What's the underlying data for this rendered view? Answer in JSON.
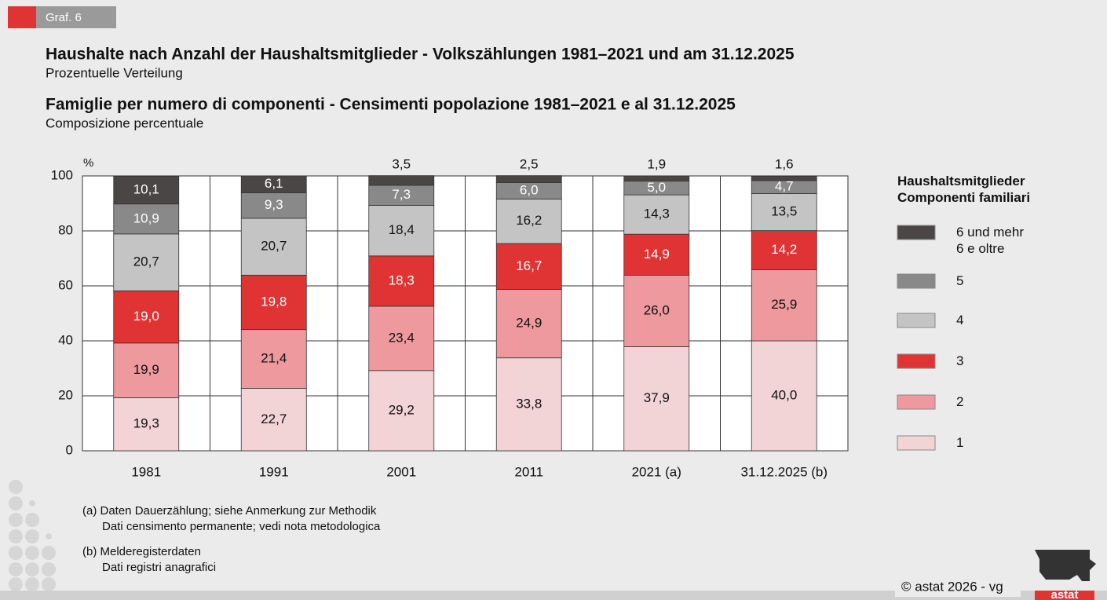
{
  "tag": "Graf. 6",
  "footnotes": [
    [
      "(a) Daten Dauerzählung; siehe Anmerkung zur Methodik",
      "Dati censimento permanente; vedi nota metodologica"
    ],
    [
      "(b) Melderegisterdaten",
      "Dati registri anagrafici"
    ]
  ],
  "copyright": "© astat 2026 - vg",
  "logo": "astat",
  "chart_data": {
    "type": "stacked_bar",
    "title": "Haushalte nach Anzahl der Haushaltsmitglieder - Volkszählungen 1981–2021 und am 31.12.2025",
    "subtitle": "Prozentuelle Verteilung",
    "title_it": "Famiglie per numero di componenti - Censimenti popolazione 1981–2021 e al 31.12.2025",
    "subtitle_it": "Composizione percentuale",
    "y_label": "%",
    "legend_title": "Haushaltsmitglieder\nComponenti familiari",
    "categories": [
      "1981",
      "1991",
      "2001",
      "2011",
      "2021 (a)",
      "31.12.2025 (b)"
    ],
    "ylim": [
      0,
      100
    ],
    "yticks": [
      0,
      20,
      40,
      60,
      80,
      100
    ],
    "grid": true,
    "series": [
      {
        "name": "1",
        "color": "#f2d3d6",
        "values": [
          19.3,
          22.7,
          29.2,
          33.8,
          37.9,
          40.0
        ],
        "value_labels": [
          "19,3",
          "22,7",
          "29,2",
          "33,8",
          "37,9",
          "40,0"
        ]
      },
      {
        "name": "2",
        "color": "#ed999d",
        "values": [
          19.9,
          21.4,
          23.4,
          24.9,
          26.0,
          25.9
        ],
        "value_labels": [
          "19,9",
          "21,4",
          "23,4",
          "24,9",
          "26,0",
          "25,9"
        ]
      },
      {
        "name": "3",
        "color": "#e03434",
        "values": [
          19.0,
          19.8,
          18.3,
          16.7,
          14.9,
          14.2
        ],
        "value_labels": [
          "19,0",
          "19,8",
          "18,3",
          "16,7",
          "14,9",
          "14,2"
        ]
      },
      {
        "name": "4",
        "color": "#c4c4c4",
        "values": [
          20.7,
          20.7,
          18.4,
          16.2,
          14.3,
          13.5
        ],
        "value_labels": [
          "20,7",
          "20,7",
          "18,4",
          "16,2",
          "14,3",
          "13,5"
        ]
      },
      {
        "name": "5",
        "color": "#898989",
        "values": [
          10.9,
          9.3,
          7.3,
          6.0,
          5.0,
          4.7
        ],
        "value_labels": [
          "10,9",
          "9,3",
          "7,3",
          "6,0",
          "5,0",
          "4,7"
        ]
      },
      {
        "name": "6 und mehr\n6 e oltre",
        "color": "#4a4646",
        "values": [
          10.1,
          6.1,
          3.5,
          2.5,
          1.9,
          1.6
        ],
        "value_labels": [
          "10,1",
          "6,1",
          "3,5",
          "2,5",
          "1,9",
          "1,6"
        ]
      }
    ]
  }
}
